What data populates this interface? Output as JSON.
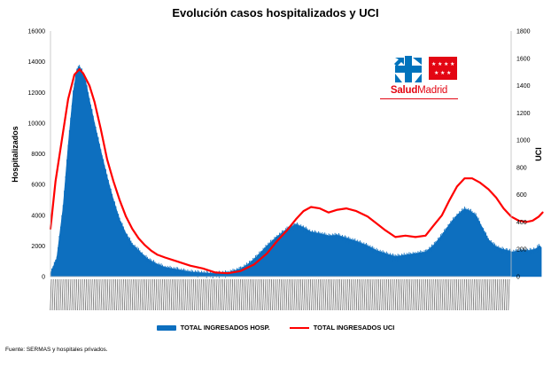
{
  "chart_data": {
    "type": "area",
    "title": "Evolución casos hospitalizados y UCI",
    "ylabel": "Hospitalizados",
    "y2label": "UCI",
    "ylim": [
      0,
      16000
    ],
    "y2lim": [
      0,
      1800
    ],
    "yticks": [
      "0",
      "2000",
      "4000",
      "6000",
      "8000",
      "10000",
      "12000",
      "14000",
      "16000"
    ],
    "y2ticks": [
      "0",
      "200",
      "400",
      "600",
      "800",
      "1000",
      "1200",
      "1400",
      "1600",
      "1800"
    ],
    "x_start": "2020-03-01",
    "x_end": "2021-03-02",
    "x_tick_labels_note": "daily date labels, rotated and illegible",
    "grid": false,
    "legend_position": "bottom",
    "series": [
      {
        "name": "TOTAL INGRESADOS HOSP.",
        "kind": "area",
        "axis": "left",
        "color": "#0d6fbf",
        "points": [
          [
            "2020-03-01",
            200
          ],
          [
            "2020-03-06",
            1200
          ],
          [
            "2020-03-11",
            4500
          ],
          [
            "2020-03-15",
            8500
          ],
          [
            "2020-03-19",
            12000
          ],
          [
            "2020-03-22",
            13500
          ],
          [
            "2020-03-24",
            13700
          ],
          [
            "2020-03-26",
            13400
          ],
          [
            "2020-03-29",
            12700
          ],
          [
            "2020-04-01",
            11500
          ],
          [
            "2020-04-05",
            10000
          ],
          [
            "2020-04-10",
            8200
          ],
          [
            "2020-04-15",
            6500
          ],
          [
            "2020-04-20",
            5000
          ],
          [
            "2020-04-25",
            3700
          ],
          [
            "2020-04-30",
            2800
          ],
          [
            "2020-05-05",
            2100
          ],
          [
            "2020-05-10",
            1700
          ],
          [
            "2020-05-15",
            1300
          ],
          [
            "2020-05-20",
            1000
          ],
          [
            "2020-05-25",
            800
          ],
          [
            "2020-05-31",
            600
          ],
          [
            "2020-06-10",
            450
          ],
          [
            "2020-06-20",
            300
          ],
          [
            "2020-07-01",
            230
          ],
          [
            "2020-07-10",
            200
          ],
          [
            "2020-07-20",
            260
          ],
          [
            "2020-07-30",
            500
          ],
          [
            "2020-08-05",
            800
          ],
          [
            "2020-08-12",
            1300
          ],
          [
            "2020-08-20",
            2000
          ],
          [
            "2020-08-28",
            2600
          ],
          [
            "2020-09-05",
            3100
          ],
          [
            "2020-09-12",
            3400
          ],
          [
            "2020-09-18",
            3200
          ],
          [
            "2020-09-24",
            2900
          ],
          [
            "2020-10-01",
            2800
          ],
          [
            "2020-10-08",
            2650
          ],
          [
            "2020-10-15",
            2700
          ],
          [
            "2020-10-22",
            2500
          ],
          [
            "2020-10-30",
            2300
          ],
          [
            "2020-11-08",
            2000
          ],
          [
            "2020-11-15",
            1700
          ],
          [
            "2020-11-22",
            1500
          ],
          [
            "2020-11-30",
            1300
          ],
          [
            "2020-12-08",
            1400
          ],
          [
            "2020-12-16",
            1500
          ],
          [
            "2020-12-24",
            1600
          ],
          [
            "2020-12-30",
            2000
          ],
          [
            "2021-01-06",
            2700
          ],
          [
            "2021-01-12",
            3400
          ],
          [
            "2021-01-18",
            4000
          ],
          [
            "2021-01-24",
            4400
          ],
          [
            "2021-01-28",
            4300
          ],
          [
            "2021-02-02",
            4000
          ],
          [
            "2021-02-07",
            3200
          ],
          [
            "2021-02-12",
            2400
          ],
          [
            "2021-02-17",
            2000
          ],
          [
            "2021-02-22",
            1800
          ],
          [
            "2021-02-27",
            1700
          ],
          [
            "2021-03-03",
            1600
          ],
          [
            "2021-03-10",
            1700
          ],
          [
            "2021-03-17",
            1700
          ],
          [
            "2021-03-22",
            1800
          ],
          [
            "2021-03-24",
            2000
          ],
          [
            "2021-03-26",
            1900
          ]
        ]
      },
      {
        "name": "TOTAL INGRESADOS UCI",
        "kind": "line",
        "axis": "right",
        "color": "#ff0000",
        "points": [
          [
            "2020-03-01",
            350
          ],
          [
            "2020-03-05",
            700
          ],
          [
            "2020-03-10",
            1000
          ],
          [
            "2020-03-15",
            1300
          ],
          [
            "2020-03-20",
            1480
          ],
          [
            "2020-03-24",
            1520
          ],
          [
            "2020-03-27",
            1490
          ],
          [
            "2020-04-01",
            1400
          ],
          [
            "2020-04-05",
            1280
          ],
          [
            "2020-04-10",
            1080
          ],
          [
            "2020-04-15",
            860
          ],
          [
            "2020-04-20",
            700
          ],
          [
            "2020-04-25",
            560
          ],
          [
            "2020-04-30",
            440
          ],
          [
            "2020-05-05",
            350
          ],
          [
            "2020-05-10",
            280
          ],
          [
            "2020-05-15",
            230
          ],
          [
            "2020-05-20",
            190
          ],
          [
            "2020-05-25",
            160
          ],
          [
            "2020-05-31",
            140
          ],
          [
            "2020-06-10",
            110
          ],
          [
            "2020-06-20",
            80
          ],
          [
            "2020-06-30",
            60
          ],
          [
            "2020-07-10",
            30
          ],
          [
            "2020-07-20",
            25
          ],
          [
            "2020-07-30",
            40
          ],
          [
            "2020-08-10",
            90
          ],
          [
            "2020-08-20",
            170
          ],
          [
            "2020-08-28",
            260
          ],
          [
            "2020-09-05",
            340
          ],
          [
            "2020-09-12",
            420
          ],
          [
            "2020-09-18",
            480
          ],
          [
            "2020-09-24",
            510
          ],
          [
            "2020-10-01",
            500
          ],
          [
            "2020-10-08",
            470
          ],
          [
            "2020-10-15",
            490
          ],
          [
            "2020-10-22",
            500
          ],
          [
            "2020-10-30",
            480
          ],
          [
            "2020-11-08",
            440
          ],
          [
            "2020-11-15",
            390
          ],
          [
            "2020-11-22",
            340
          ],
          [
            "2020-11-30",
            290
          ],
          [
            "2020-12-08",
            300
          ],
          [
            "2020-12-16",
            290
          ],
          [
            "2020-12-24",
            300
          ],
          [
            "2020-12-30",
            370
          ],
          [
            "2021-01-06",
            450
          ],
          [
            "2021-01-12",
            560
          ],
          [
            "2021-01-18",
            660
          ],
          [
            "2021-01-24",
            720
          ],
          [
            "2021-01-30",
            720
          ],
          [
            "2021-02-05",
            690
          ],
          [
            "2021-02-12",
            640
          ],
          [
            "2021-02-18",
            580
          ],
          [
            "2021-02-24",
            500
          ],
          [
            "2021-03-02",
            440
          ],
          [
            "2021-03-08",
            410
          ],
          [
            "2021-03-14",
            400
          ],
          [
            "2021-03-19",
            410
          ],
          [
            "2021-03-24",
            440
          ],
          [
            "2021-03-27",
            470
          ]
        ]
      }
    ]
  },
  "logo": {
    "name_part1": "Salud",
    "name_part2": "Madrid",
    "brand_blue": "#0073bc",
    "brand_red": "#e30613"
  },
  "footer": {
    "source": "Fuente: SERMAS y hospitales privados."
  }
}
